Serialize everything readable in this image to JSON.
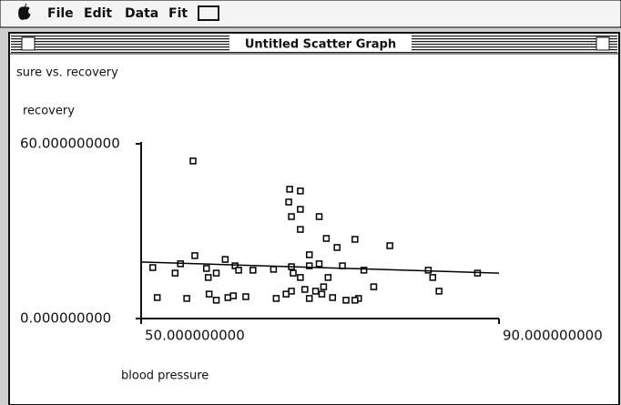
{
  "menu": {
    "items": [
      "File",
      "Edit",
      "Data",
      "Fit"
    ]
  },
  "window": {
    "title": "Untitled Scatter Graph"
  },
  "chart_data": {
    "type": "scatter",
    "title": "sure vs. recovery",
    "y_label": "recovery",
    "x_label": "blood pressure",
    "xlim": [
      50,
      90
    ],
    "ylim": [
      0,
      60
    ],
    "xticks": [
      {
        "value": 50,
        "label": "50.000000000"
      },
      {
        "value": 90,
        "label": "90.000000000"
      }
    ],
    "yticks": [
      {
        "value": 60,
        "label": "60.000000000"
      },
      {
        "value": 0,
        "label": "0.000000000"
      }
    ],
    "series": [
      {
        "mode": "markers",
        "color": "#000000",
        "x": [
          55.8,
          66.6,
          67.8,
          66.5,
          67.8,
          66.8,
          69.9,
          67.8,
          70.7,
          73.9,
          71.9,
          68.8,
          77.8,
          56.0,
          54.4,
          59.4,
          51.3,
          53.8,
          57.3,
          60.5,
          57.5,
          58.4,
          60.9,
          62.5,
          64.8,
          66.8,
          68.8,
          69.9,
          72.5,
          74.9,
          67.8,
          70.9,
          66.8,
          67.0,
          68.3,
          69.5,
          70.2,
          70.4,
          72.9,
          74.3,
          76.0,
          82.1,
          82.6,
          83.3,
          87.6,
          51.8,
          55.1,
          57.6,
          58.4,
          59.7,
          61.7,
          60.3,
          65.1,
          66.2,
          68.8,
          71.4,
          73.9
        ],
        "values": [
          54.1,
          44.4,
          43.8,
          40.0,
          37.5,
          35.0,
          35.0,
          30.6,
          27.5,
          27.2,
          24.4,
          21.9,
          25.0,
          21.6,
          18.8,
          20.3,
          17.5,
          15.6,
          17.2,
          18.1,
          14.1,
          15.6,
          16.6,
          16.6,
          16.9,
          17.8,
          18.1,
          18.8,
          18.1,
          16.6,
          14.1,
          14.1,
          9.4,
          15.6,
          10.0,
          9.4,
          8.4,
          10.9,
          6.3,
          6.9,
          10.9,
          16.6,
          14.1,
          9.4,
          15.6,
          7.2,
          6.9,
          8.4,
          6.3,
          7.2,
          7.5,
          7.8,
          6.9,
          8.4,
          6.9,
          7.2,
          6.3
        ]
      },
      {
        "mode": "line",
        "color": "#000000",
        "x": [
          50,
          90
        ],
        "values": [
          19.4,
          15.6
        ]
      }
    ]
  }
}
